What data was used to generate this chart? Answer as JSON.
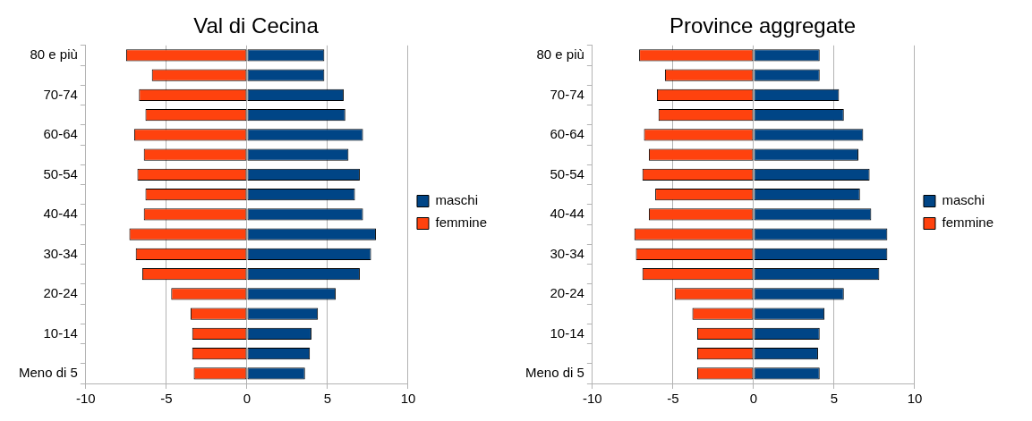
{
  "chart_data": [
    {
      "type": "bar",
      "title": "Val di Cecina",
      "orientation": "horizontal",
      "stacked": true,
      "categories": [
        "80 e più",
        null,
        "70-74",
        null,
        "60-64",
        null,
        "50-54",
        null,
        "40-44",
        null,
        "30-34",
        null,
        "20-24",
        null,
        "10-14",
        null,
        "Meno di 5"
      ],
      "series": [
        {
          "name": "maschi",
          "color": "#004586",
          "values": [
            4.8,
            4.8,
            6.0,
            6.1,
            7.2,
            6.3,
            7.0,
            6.7,
            7.2,
            8.0,
            7.7,
            7.0,
            5.5,
            4.4,
            4.0,
            3.9,
            3.6
          ]
        },
        {
          "name": "femmine",
          "color": "#ff420e",
          "values": [
            -7.5,
            -5.9,
            -6.7,
            -6.3,
            -7.0,
            -6.4,
            -6.8,
            -6.3,
            -6.4,
            -7.3,
            -6.9,
            -6.5,
            -4.7,
            -3.5,
            -3.4,
            -3.4,
            -3.3
          ]
        }
      ],
      "xlim": [
        -10,
        10
      ],
      "xticks": [
        -10,
        -5,
        0,
        5,
        10
      ],
      "grid": "x",
      "legend": "right"
    },
    {
      "type": "bar",
      "title": "Province aggregate",
      "orientation": "horizontal",
      "stacked": true,
      "categories": [
        "80 e più",
        null,
        "70-74",
        null,
        "60-64",
        null,
        "50-54",
        null,
        "40-44",
        null,
        "30-34",
        null,
        "20-24",
        null,
        "10-14",
        null,
        "Meno di 5"
      ],
      "series": [
        {
          "name": "maschi",
          "color": "#004586",
          "values": [
            4.1,
            4.1,
            5.3,
            5.6,
            6.8,
            6.5,
            7.2,
            6.6,
            7.3,
            8.3,
            8.3,
            7.8,
            5.6,
            4.4,
            4.1,
            4.0,
            4.1
          ]
        },
        {
          "name": "femmine",
          "color": "#ff420e",
          "values": [
            -7.1,
            -5.5,
            -6.0,
            -5.9,
            -6.8,
            -6.5,
            -6.9,
            -6.1,
            -6.5,
            -7.4,
            -7.3,
            -6.9,
            -4.9,
            -3.8,
            -3.5,
            -3.5,
            -3.5
          ]
        }
      ],
      "xlim": [
        -10,
        10
      ],
      "xticks": [
        -10,
        -5,
        0,
        5,
        10
      ],
      "grid": "x",
      "legend": "right"
    }
  ]
}
